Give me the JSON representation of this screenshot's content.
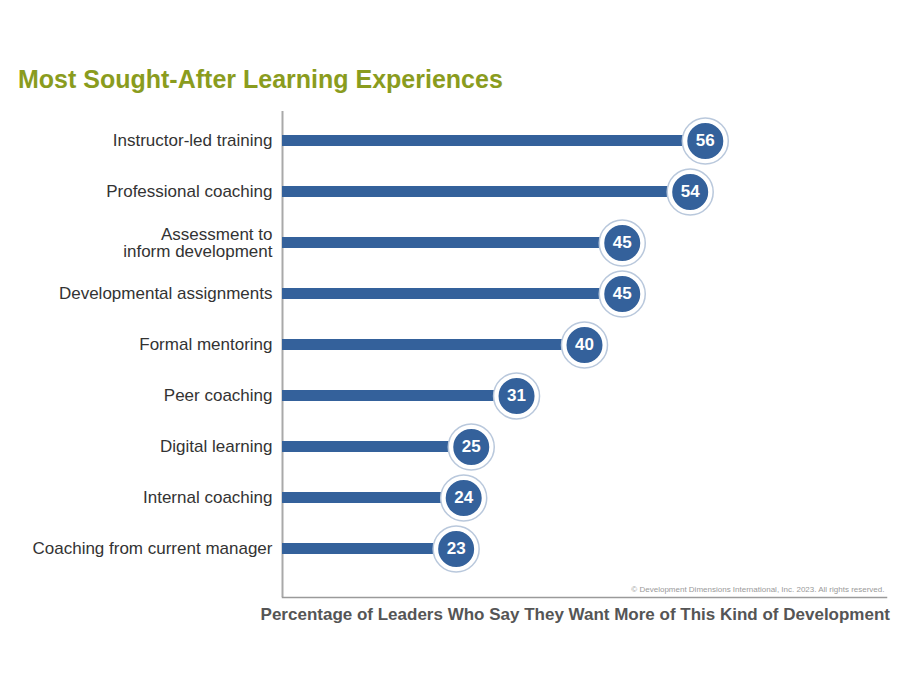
{
  "chart_data": {
    "type": "bar",
    "orientation": "horizontal",
    "title": "Most Sought-After Learning Experiences",
    "xlabel": "Percentage of Leaders Who Say They Want More of This Kind of Development",
    "annotations": [
      "© Development Dimensions International, Inc. 2023. All rights reserved."
    ],
    "categories": [
      "Instructor-led training",
      "Professional coaching",
      "Assessment to\ninform development",
      "Developmental assignments",
      "Formal mentoring",
      "Peer coaching",
      "Digital learning",
      "Internal coaching",
      "Coaching from current manager"
    ],
    "values": [
      56,
      54,
      45,
      45,
      40,
      31,
      25,
      24,
      23
    ],
    "color": "#34619b",
    "xlim": [
      0,
      80
    ],
    "xticks": [],
    "data_labels": true,
    "tick_labels": "y",
    "grid": false
  }
}
